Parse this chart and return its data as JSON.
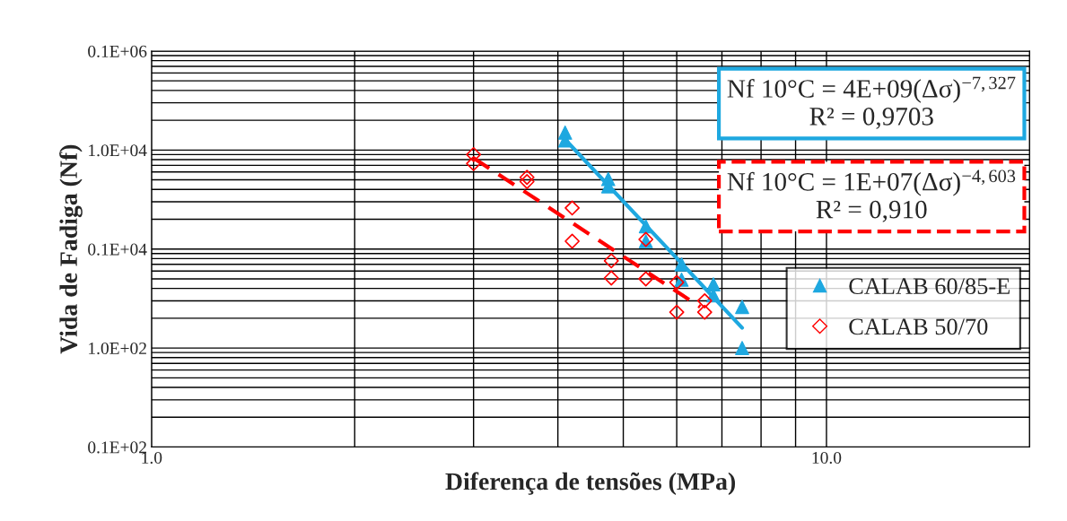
{
  "chart_data": {
    "type": "scatter",
    "xlabel": "Diferença de tensões (MPa)",
    "ylabel": "Vida de Fadiga (Nf)",
    "log": "xy",
    "grid": true,
    "legend": "right",
    "xlim": [
      1,
      20
    ],
    "ylim": [
      10,
      100000
    ],
    "xticks": [
      {
        "value": 1,
        "label": "1.0"
      },
      {
        "value": 2,
        "label": null
      },
      {
        "value": 3,
        "label": null
      },
      {
        "value": 4,
        "label": null
      },
      {
        "value": 5,
        "label": null
      },
      {
        "value": 6,
        "label": null
      },
      {
        "value": 7,
        "label": null
      },
      {
        "value": 8,
        "label": null
      },
      {
        "value": 9,
        "label": null
      },
      {
        "value": 10,
        "label": "10.0"
      },
      {
        "value": 20,
        "label": null
      }
    ],
    "yticks": [
      {
        "value": 10,
        "label": "0.1E+02"
      },
      {
        "value": 20,
        "label": null
      },
      {
        "value": 30,
        "label": null
      },
      {
        "value": 40,
        "label": null
      },
      {
        "value": 50,
        "label": null
      },
      {
        "value": 60,
        "label": null
      },
      {
        "value": 70,
        "label": null
      },
      {
        "value": 80,
        "label": null
      },
      {
        "value": 90,
        "label": null
      },
      {
        "value": 100,
        "label": "1.0E+02"
      },
      {
        "value": 200,
        "label": null
      },
      {
        "value": 300,
        "label": null
      },
      {
        "value": 400,
        "label": null
      },
      {
        "value": 500,
        "label": null
      },
      {
        "value": 600,
        "label": null
      },
      {
        "value": 700,
        "label": null
      },
      {
        "value": 800,
        "label": null
      },
      {
        "value": 900,
        "label": null
      },
      {
        "value": 1000,
        "label": "0.1E+04"
      },
      {
        "value": 2000,
        "label": null
      },
      {
        "value": 3000,
        "label": null
      },
      {
        "value": 4000,
        "label": null
      },
      {
        "value": 5000,
        "label": null
      },
      {
        "value": 6000,
        "label": null
      },
      {
        "value": 7000,
        "label": null
      },
      {
        "value": 8000,
        "label": null
      },
      {
        "value": 9000,
        "label": null
      },
      {
        "value": 10000,
        "label": "1.0E+04"
      },
      {
        "value": 20000,
        "label": null
      },
      {
        "value": 30000,
        "label": null
      },
      {
        "value": 40000,
        "label": null
      },
      {
        "value": 50000,
        "label": null
      },
      {
        "value": 60000,
        "label": null
      },
      {
        "value": 70000,
        "label": null
      },
      {
        "value": 80000,
        "label": null
      },
      {
        "value": 90000,
        "label": null
      },
      {
        "value": 100000,
        "label": "0.1E+06"
      }
    ],
    "series": [
      {
        "name": "CALAB 60/85-E",
        "marker": "triangle",
        "color": "#1ea8e0",
        "x": [
          4.1,
          4.1,
          4.75,
          4.75,
          5.4,
          5.4,
          6.1,
          6.1,
          6.8,
          6.8,
          7.5,
          7.5
        ],
        "values": [
          15000,
          12500,
          5100,
          4300,
          1700,
          1200,
          700,
          490,
          440,
          340,
          260,
          100
        ]
      },
      {
        "name": "CALAB 50/70",
        "marker": "diamond",
        "color": "#ff0000",
        "x": [
          3.0,
          3.0,
          3.6,
          3.6,
          4.2,
          4.2,
          4.8,
          4.8,
          5.4,
          5.4,
          6.0,
          6.0,
          6.6,
          6.6
        ],
        "values": [
          9000,
          7300,
          5300,
          4800,
          2600,
          1200,
          760,
          510,
          1250,
          500,
          460,
          230,
          300,
          230
        ]
      },
      {
        "type": "line",
        "line_style": "solid",
        "color": "#1ea8e0",
        "x": [
          4.1,
          7.5
        ],
        "values": [
          12800,
          160
        ]
      },
      {
        "type": "line",
        "line_style": "dashed",
        "color": "#ff0000",
        "x": [
          3.0,
          6.5
        ],
        "values": [
          8300,
          260
        ]
      }
    ],
    "annotations": [
      "Nf 10°C = 4E+09(Δσ)$^{−7,327}$\nR² = 0,9703",
      "Nf 10°C = 1E+07(Δσ)$^{−4,603}$\nR² = 0,910"
    ]
  }
}
